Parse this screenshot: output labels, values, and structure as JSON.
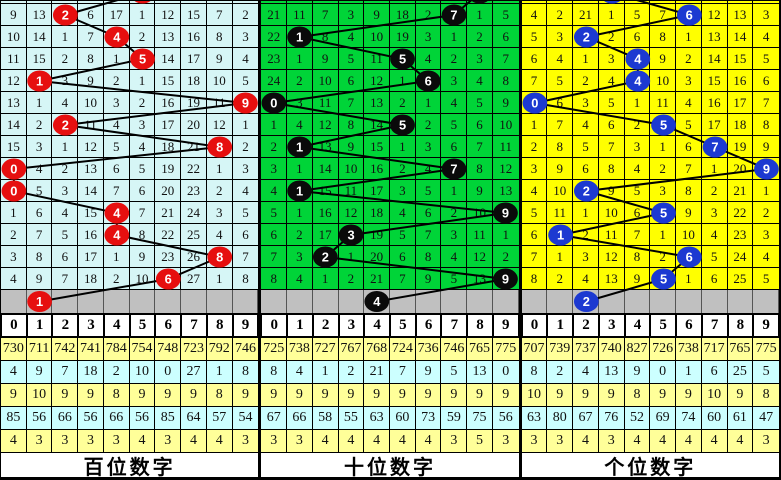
{
  "header_digits": [
    "0",
    "1",
    "2",
    "3",
    "4",
    "5",
    "6",
    "7",
    "8",
    "9"
  ],
  "colors": {
    "hundreds_bg": "#D6F6F6",
    "tens_bg": "#00D438",
    "units_bg": "#FFFF00",
    "hundreds_ball": "#E60F0F",
    "tens_ball": "#0A0A0A",
    "units_ball": "#1C39D1",
    "pending_row_bg": "#C0C0C0",
    "stat_yellow": "#FFFF99",
    "stat_cyan": "#CCFFFF",
    "line_color": "#000000"
  },
  "chart_data": [
    {
      "type": "line",
      "title": "百位数字",
      "panel": "hundreds",
      "bg": "#D6F6F6",
      "ball_color": "#E60F0F",
      "partial_top_ball_col": 5,
      "ball_cols": [
        2,
        4,
        5,
        1,
        9,
        2,
        8,
        0,
        0,
        4,
        4,
        8,
        6
      ],
      "pending_ball_col": 1,
      "rows": [
        [
          "9",
          "13",
          "",
          "6",
          "17",
          "1",
          "12",
          "15",
          "7",
          "2"
        ],
        [
          "10",
          "14",
          "1",
          "7",
          "",
          "2",
          "13",
          "16",
          "8",
          "3"
        ],
        [
          "11",
          "15",
          "2",
          "8",
          "1",
          "",
          "14",
          "17",
          "9",
          "4"
        ],
        [
          "12",
          "",
          "3",
          "9",
          "2",
          "1",
          "15",
          "18",
          "10",
          "5"
        ],
        [
          "13",
          "1",
          "4",
          "10",
          "3",
          "2",
          "16",
          "19",
          "11",
          ""
        ],
        [
          "14",
          "2",
          "",
          "11",
          "4",
          "3",
          "17",
          "20",
          "12",
          "1"
        ],
        [
          "15",
          "3",
          "1",
          "12",
          "5",
          "4",
          "18",
          "21",
          "",
          "2"
        ],
        [
          "",
          "4",
          "2",
          "13",
          "6",
          "5",
          "19",
          "22",
          "1",
          "3"
        ],
        [
          "",
          "5",
          "3",
          "14",
          "7",
          "6",
          "20",
          "23",
          "2",
          "4"
        ],
        [
          "1",
          "6",
          "4",
          "15",
          "",
          "7",
          "21",
          "24",
          "3",
          "5"
        ],
        [
          "2",
          "7",
          "5",
          "16",
          "",
          "8",
          "22",
          "25",
          "4",
          "6"
        ],
        [
          "3",
          "8",
          "6",
          "17",
          "1",
          "9",
          "23",
          "26",
          "",
          "7"
        ],
        [
          "4",
          "9",
          "7",
          "18",
          "2",
          "10",
          "",
          "27",
          "1",
          "8"
        ]
      ],
      "stat_rows": [
        [
          "730",
          "711",
          "742",
          "741",
          "784",
          "754",
          "748",
          "723",
          "792",
          "746"
        ],
        [
          "4",
          "9",
          "7",
          "18",
          "2",
          "10",
          "0",
          "27",
          "1",
          "8"
        ],
        [
          "9",
          "10",
          "9",
          "9",
          "8",
          "9",
          "9",
          "9",
          "8",
          "9"
        ],
        [
          "85",
          "56",
          "66",
          "56",
          "66",
          "56",
          "85",
          "64",
          "57",
          "54"
        ],
        [
          "4",
          "3",
          "3",
          "3",
          "3",
          "4",
          "3",
          "4",
          "4",
          "3"
        ]
      ]
    },
    {
      "type": "line",
      "title": "十位数字",
      "panel": "tens",
      "bg": "#00D438",
      "ball_color": "#0A0A0A",
      "partial_top_ball_col": 8,
      "ball_cols": [
        7,
        1,
        5,
        6,
        0,
        5,
        1,
        7,
        1,
        9,
        3,
        2,
        9
      ],
      "pending_ball_col": 4,
      "rows": [
        [
          "21",
          "11",
          "7",
          "3",
          "9",
          "18",
          "2",
          "",
          "1",
          "5"
        ],
        [
          "22",
          "",
          "8",
          "4",
          "10",
          "19",
          "3",
          "1",
          "2",
          "6"
        ],
        [
          "23",
          "1",
          "9",
          "5",
          "11",
          "",
          "4",
          "2",
          "3",
          "7"
        ],
        [
          "24",
          "2",
          "10",
          "6",
          "12",
          "1",
          "",
          "3",
          "4",
          "8"
        ],
        [
          "",
          "3",
          "11",
          "7",
          "13",
          "2",
          "1",
          "4",
          "5",
          "9"
        ],
        [
          "1",
          "4",
          "12",
          "8",
          "14",
          "",
          "2",
          "5",
          "6",
          "10"
        ],
        [
          "2",
          "",
          "13",
          "9",
          "15",
          "1",
          "3",
          "6",
          "7",
          "11"
        ],
        [
          "3",
          "1",
          "14",
          "10",
          "16",
          "2",
          "4",
          "",
          "8",
          "12"
        ],
        [
          "4",
          "",
          "15",
          "11",
          "17",
          "3",
          "5",
          "1",
          "9",
          "13"
        ],
        [
          "5",
          "1",
          "16",
          "12",
          "18",
          "4",
          "6",
          "2",
          "10",
          ""
        ],
        [
          "6",
          "2",
          "17",
          "",
          "19",
          "5",
          "7",
          "3",
          "11",
          "1"
        ],
        [
          "7",
          "3",
          "",
          "1",
          "20",
          "6",
          "8",
          "4",
          "12",
          "2"
        ],
        [
          "8",
          "4",
          "1",
          "2",
          "21",
          "7",
          "9",
          "5",
          "13",
          ""
        ]
      ],
      "stat_rows": [
        [
          "725",
          "738",
          "727",
          "767",
          "768",
          "724",
          "736",
          "746",
          "765",
          "775"
        ],
        [
          "8",
          "4",
          "1",
          "2",
          "21",
          "7",
          "9",
          "5",
          "13",
          "0"
        ],
        [
          "9",
          "9",
          "9",
          "9",
          "9",
          "9",
          "9",
          "9",
          "9",
          "9"
        ],
        [
          "67",
          "66",
          "58",
          "55",
          "63",
          "60",
          "73",
          "59",
          "75",
          "56"
        ],
        [
          "3",
          "3",
          "4",
          "4",
          "4",
          "4",
          "4",
          "3",
          "5",
          "3"
        ]
      ]
    },
    {
      "type": "line",
      "title": "个位数字",
      "panel": "units",
      "bg": "#FFFF00",
      "ball_color": "#1C39D1",
      "partial_top_ball_col": 3,
      "ball_cols": [
        6,
        2,
        4,
        4,
        0,
        5,
        7,
        9,
        2,
        5,
        1,
        6,
        5
      ],
      "pending_ball_col": 2,
      "rows": [
        [
          "4",
          "2",
          "21",
          "1",
          "5",
          "7",
          "",
          "12",
          "13",
          "3"
        ],
        [
          "5",
          "3",
          "",
          "2",
          "6",
          "8",
          "1",
          "13",
          "14",
          "4"
        ],
        [
          "6",
          "4",
          "1",
          "3",
          "",
          "9",
          "2",
          "14",
          "15",
          "5"
        ],
        [
          "7",
          "5",
          "2",
          "4",
          "",
          "10",
          "3",
          "15",
          "16",
          "6"
        ],
        [
          "",
          "6",
          "3",
          "5",
          "1",
          "11",
          "4",
          "16",
          "17",
          "7"
        ],
        [
          "1",
          "7",
          "4",
          "6",
          "2",
          "",
          "5",
          "17",
          "18",
          "8"
        ],
        [
          "2",
          "8",
          "5",
          "7",
          "3",
          "1",
          "6",
          "",
          "19",
          "9"
        ],
        [
          "3",
          "9",
          "6",
          "8",
          "4",
          "2",
          "7",
          "1",
          "20",
          ""
        ],
        [
          "4",
          "10",
          "",
          "9",
          "5",
          "3",
          "8",
          "2",
          "21",
          "1"
        ],
        [
          "5",
          "11",
          "1",
          "10",
          "6",
          "",
          "9",
          "3",
          "22",
          "2"
        ],
        [
          "6",
          "",
          "2",
          "11",
          "7",
          "1",
          "10",
          "4",
          "23",
          "3"
        ],
        [
          "7",
          "1",
          "3",
          "12",
          "8",
          "2",
          "",
          "5",
          "24",
          "4"
        ],
        [
          "8",
          "2",
          "4",
          "13",
          "9",
          "",
          "1",
          "6",
          "25",
          "5"
        ]
      ],
      "stat_rows": [
        [
          "707",
          "739",
          "737",
          "740",
          "827",
          "726",
          "738",
          "717",
          "765",
          "775"
        ],
        [
          "8",
          "2",
          "4",
          "13",
          "9",
          "0",
          "1",
          "6",
          "25",
          "5"
        ],
        [
          "10",
          "9",
          "9",
          "9",
          "8",
          "9",
          "9",
          "10",
          "9",
          "8"
        ],
        [
          "63",
          "80",
          "67",
          "76",
          "52",
          "69",
          "74",
          "60",
          "61",
          "47"
        ],
        [
          "3",
          "3",
          "4",
          "3",
          "4",
          "4",
          "4",
          "4",
          "4",
          "3"
        ]
      ]
    }
  ]
}
